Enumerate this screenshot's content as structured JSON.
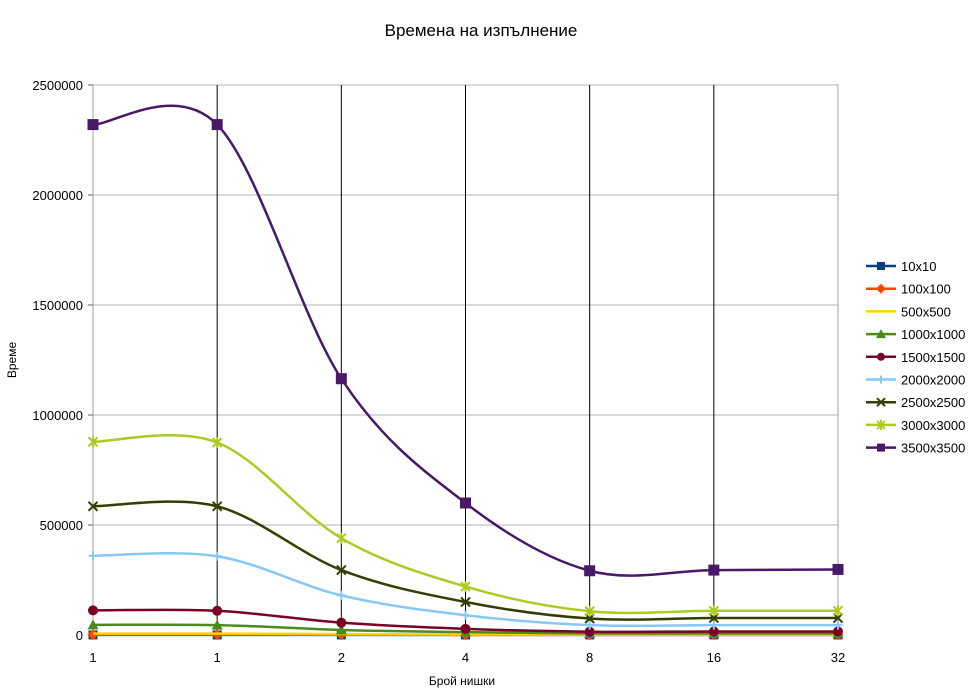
{
  "chart_data": {
    "type": "line",
    "title": "Времена на изпълнение",
    "xlabel": "Брой нишки",
    "ylabel": "Време",
    "categories": [
      "1",
      "1",
      "2",
      "4",
      "8",
      "16",
      "32"
    ],
    "ylim": [
      0,
      2500000
    ],
    "yticks": [
      "0",
      "500000",
      "1000000",
      "1500000",
      "2000000",
      "2500000"
    ],
    "grid": true,
    "legend_position": "right",
    "series": [
      {
        "name": "10x10",
        "color": "#0b3f7a",
        "marker": "square",
        "values": [
          300,
          300,
          300,
          300,
          300,
          300,
          300
        ]
      },
      {
        "name": "100x100",
        "color": "#ff4500",
        "marker": "diamond",
        "values": [
          1500,
          1500,
          900,
          600,
          500,
          500,
          500
        ]
      },
      {
        "name": "500x500",
        "color": "#ffd200",
        "marker": "none",
        "values": [
          6000,
          6000,
          4000,
          2500,
          1500,
          1500,
          1500
        ]
      },
      {
        "name": "1000x1000",
        "color": "#4b8b1e",
        "marker": "triangle",
        "values": [
          46000,
          45000,
          23000,
          13000,
          7000,
          7000,
          7000
        ]
      },
      {
        "name": "1500x1500",
        "color": "#7b0028",
        "marker": "circle",
        "values": [
          112000,
          110000,
          56000,
          28000,
          15000,
          16000,
          16000
        ]
      },
      {
        "name": "2000x2000",
        "color": "#88c8f4",
        "marker": "plus",
        "values": [
          360000,
          358000,
          180000,
          90000,
          45000,
          45000,
          45000
        ]
      },
      {
        "name": "2500x2500",
        "color": "#333f00",
        "marker": "x",
        "values": [
          585000,
          585000,
          295000,
          150000,
          75000,
          77000,
          77000
        ]
      },
      {
        "name": "3000x3000",
        "color": "#aacc22",
        "marker": "asterisk",
        "values": [
          878000,
          875000,
          440000,
          220000,
          108000,
          110000,
          110000
        ]
      },
      {
        "name": "3500x3500",
        "color": "#4a1869",
        "marker": "square",
        "values": [
          2320000,
          2320000,
          1165000,
          600000,
          292000,
          295000,
          298000
        ]
      }
    ]
  }
}
